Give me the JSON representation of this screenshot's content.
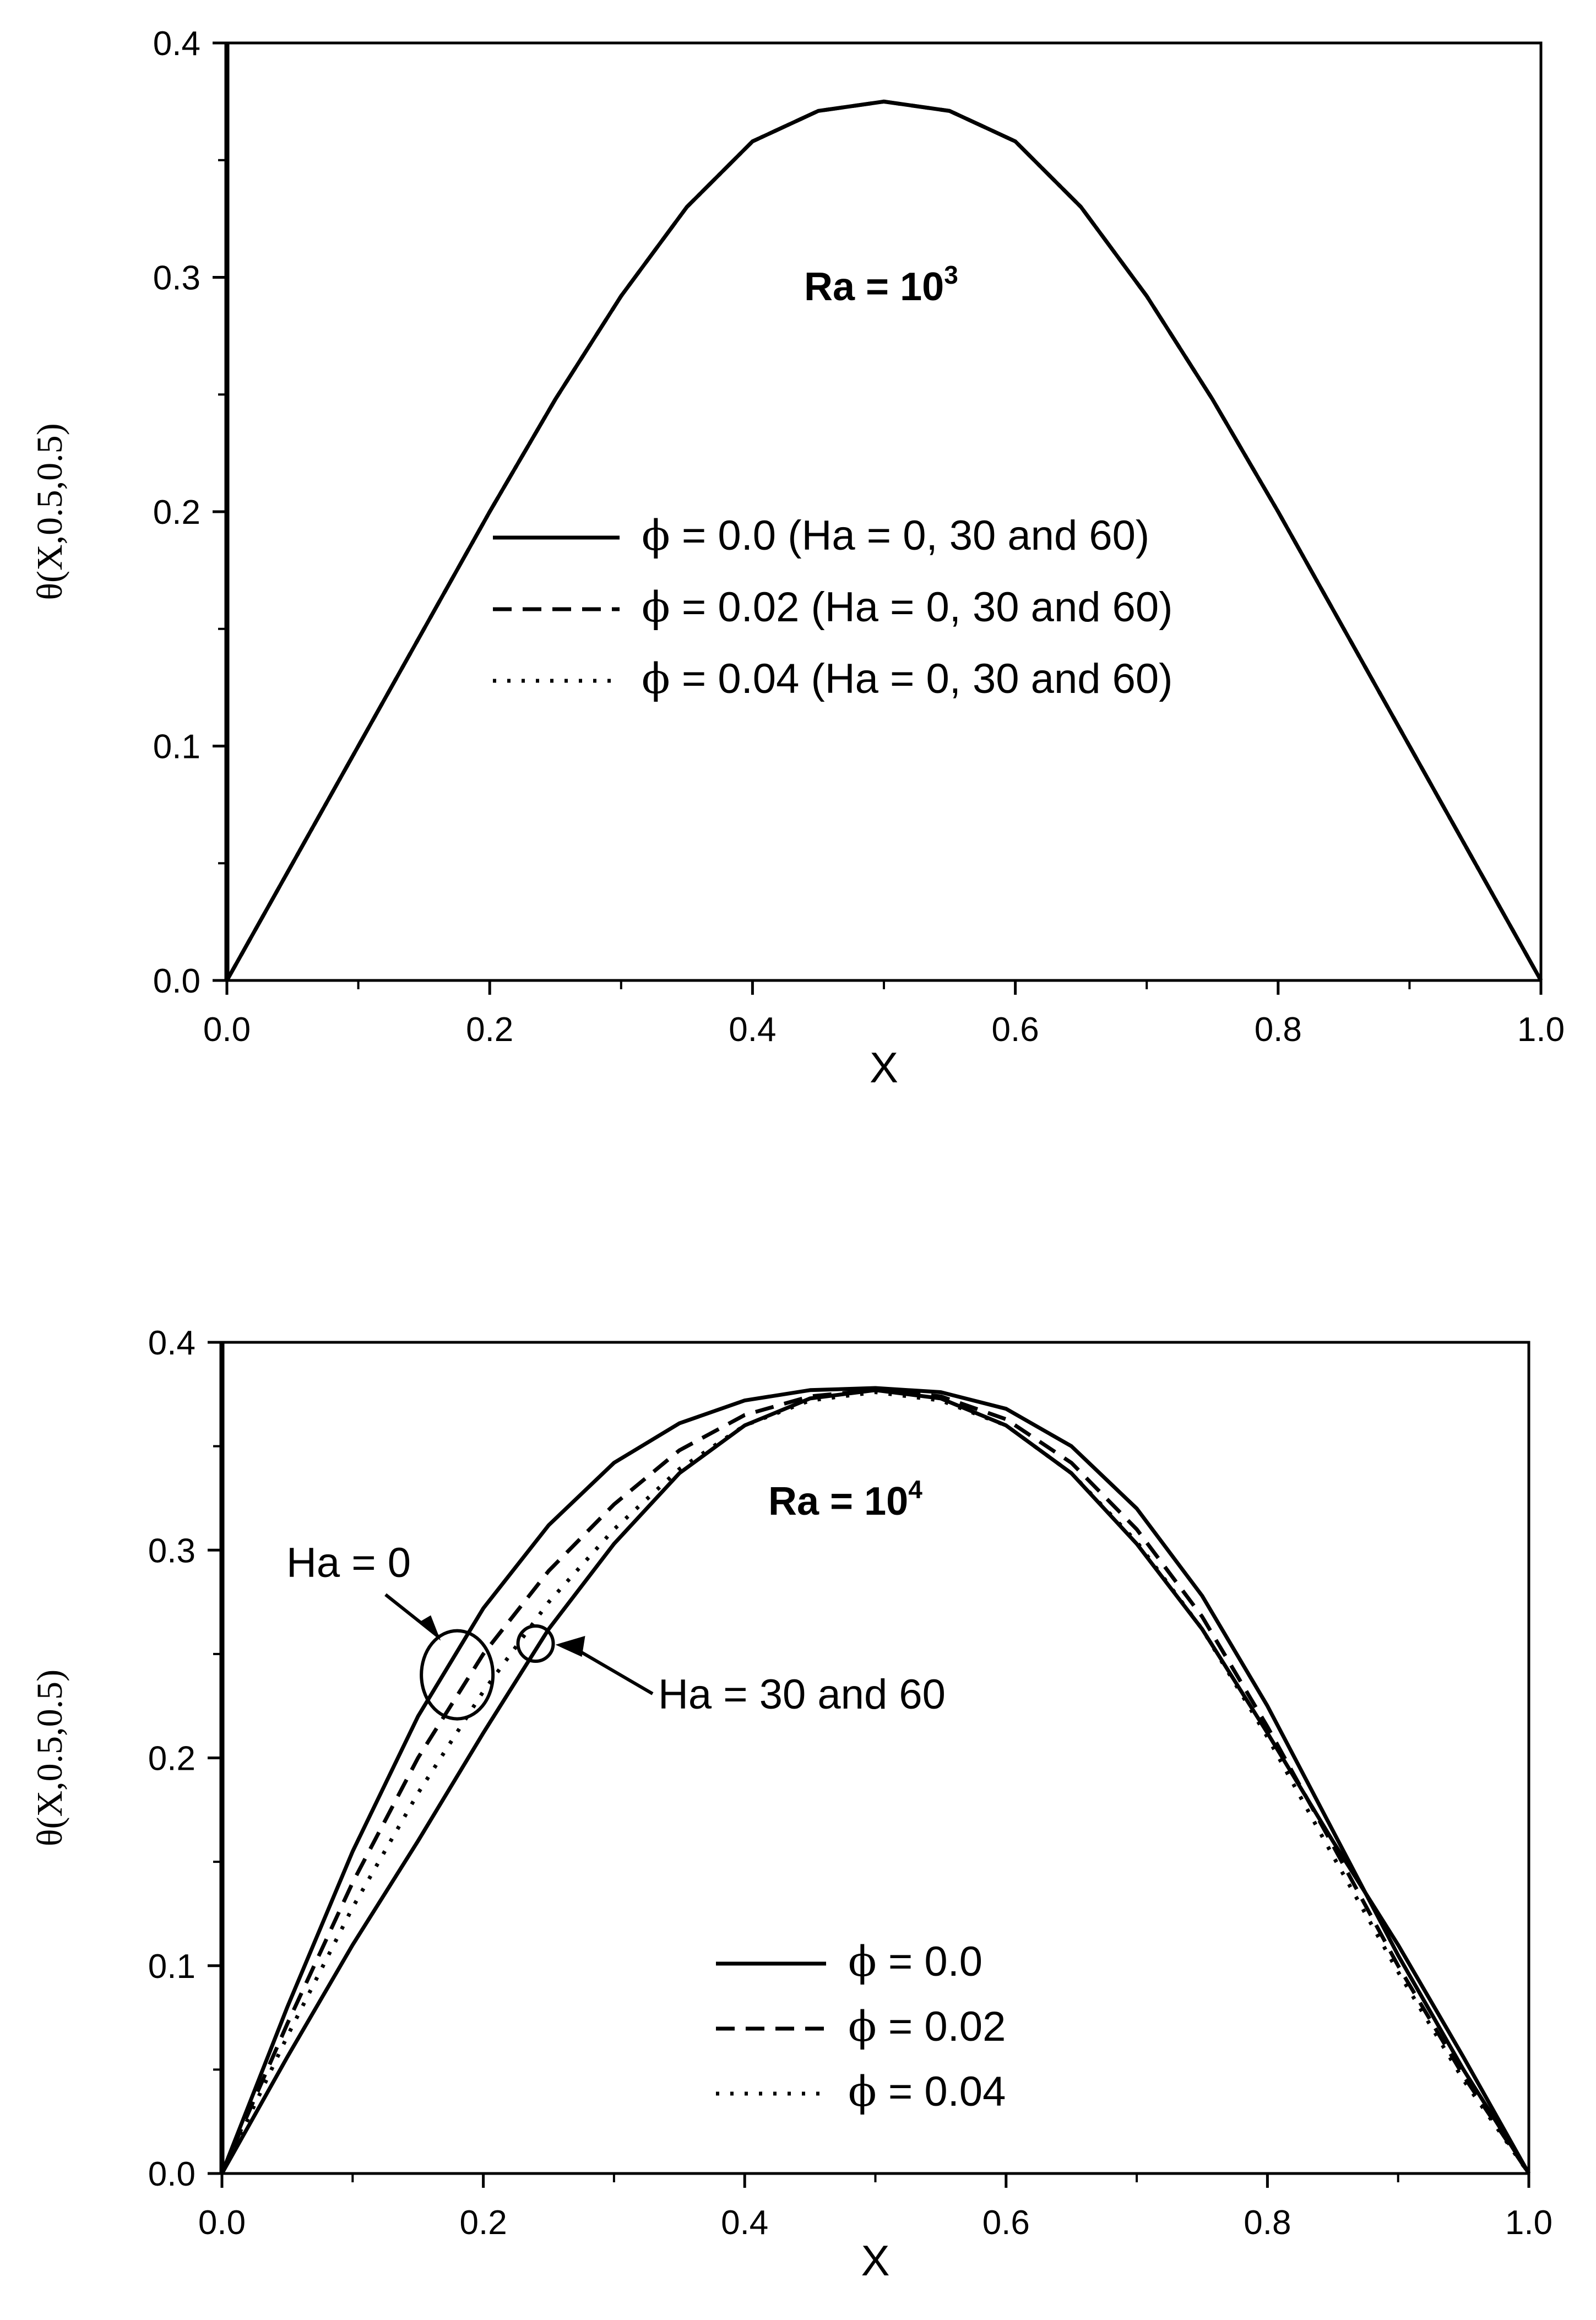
{
  "chart_data": [
    {
      "type": "line",
      "xlabel": "X",
      "ylabel": "θ(X,0.5,0.5)",
      "xlim": [
        0.0,
        1.0
      ],
      "ylim": [
        0.0,
        0.4
      ],
      "x_ticks": [
        "0.0",
        "0.2",
        "0.4",
        "0.6",
        "0.8",
        "1.0"
      ],
      "y_ticks": [
        "0.0",
        "0.1",
        "0.2",
        "0.3",
        "0.4"
      ],
      "annotation": {
        "prefix": "Ra = 10",
        "exponent": "3"
      },
      "legend_location": "center",
      "legend": [
        {
          "symbol": "ϕ",
          "text": " = 0.0 (Ha = 0, 30 and 60)",
          "dash": "solid"
        },
        {
          "symbol": "ϕ",
          "text": " = 0.02 (Ha = 0, 30 and 60)",
          "dash": "dashed"
        },
        {
          "symbol": "ϕ",
          "text": " = 0.04 (Ha = 0, 30 and 60)",
          "dash": "dotted"
        }
      ],
      "series": [
        {
          "name": "ϕ = 0.0 (Ha = 0, 30 and 60)",
          "dash": "solid",
          "x": [
            0.0,
            0.05,
            0.1,
            0.15,
            0.2,
            0.25,
            0.3,
            0.35,
            0.4,
            0.45,
            0.5,
            0.55,
            0.6,
            0.65,
            0.7,
            0.75,
            0.8,
            0.85,
            0.9,
            0.95,
            1.0
          ],
          "y": [
            0.0,
            0.05,
            0.1,
            0.15,
            0.2,
            0.248,
            0.292,
            0.33,
            0.358,
            0.371,
            0.375,
            0.371,
            0.358,
            0.33,
            0.292,
            0.248,
            0.2,
            0.15,
            0.1,
            0.05,
            0.0
          ]
        },
        {
          "name": "ϕ = 0.02 (Ha = 0, 30 and 60)",
          "dash": "dashed",
          "x": [
            0.0,
            0.05,
            0.1,
            0.15,
            0.2,
            0.25,
            0.3,
            0.35,
            0.4,
            0.45,
            0.5,
            0.55,
            0.6,
            0.65,
            0.7,
            0.75,
            0.8,
            0.85,
            0.9,
            0.95,
            1.0
          ],
          "y": [
            0.0,
            0.05,
            0.1,
            0.15,
            0.2,
            0.248,
            0.292,
            0.33,
            0.358,
            0.371,
            0.375,
            0.371,
            0.358,
            0.33,
            0.292,
            0.248,
            0.2,
            0.15,
            0.1,
            0.05,
            0.0
          ]
        },
        {
          "name": "ϕ = 0.04 (Ha = 0, 30 and 60)",
          "dash": "dotted",
          "x": [
            0.0,
            0.05,
            0.1,
            0.15,
            0.2,
            0.25,
            0.3,
            0.35,
            0.4,
            0.45,
            0.5,
            0.55,
            0.6,
            0.65,
            0.7,
            0.75,
            0.8,
            0.85,
            0.9,
            0.95,
            1.0
          ],
          "y": [
            0.0,
            0.05,
            0.1,
            0.15,
            0.2,
            0.248,
            0.292,
            0.33,
            0.358,
            0.371,
            0.375,
            0.371,
            0.358,
            0.33,
            0.292,
            0.248,
            0.2,
            0.15,
            0.1,
            0.05,
            0.0
          ]
        }
      ]
    },
    {
      "type": "line",
      "xlabel": "X",
      "ylabel": "θ(X,0.5,0.5)",
      "xlim": [
        0.0,
        1.0
      ],
      "ylim": [
        0.0,
        0.4
      ],
      "x_ticks": [
        "0.0",
        "0.2",
        "0.4",
        "0.6",
        "0.8",
        "1.0"
      ],
      "y_ticks": [
        "0.0",
        "0.1",
        "0.2",
        "0.3",
        "0.4"
      ],
      "annotation": {
        "prefix": "Ra = 10",
        "exponent": "4"
      },
      "legend_location": "bottom-center",
      "legend": [
        {
          "symbol": "ϕ",
          "text": " = 0.0",
          "dash": "solid"
        },
        {
          "symbol": "ϕ",
          "text": " = 0.02",
          "dash": "dashed"
        },
        {
          "symbol": "ϕ",
          "text": " = 0.04",
          "dash": "dotted"
        }
      ],
      "annotations": [
        {
          "text": "Ha = 0",
          "target_x": 0.18,
          "target_y": 0.24
        },
        {
          "text": "Ha = 30 and 60",
          "target_x": 0.24,
          "target_y": 0.255
        }
      ],
      "series": [
        {
          "name": "ϕ = 0.0, Ha = 0",
          "dash": "solid",
          "x": [
            0.0,
            0.05,
            0.1,
            0.15,
            0.2,
            0.25,
            0.3,
            0.35,
            0.4,
            0.45,
            0.5,
            0.55,
            0.6,
            0.65,
            0.7,
            0.75,
            0.8,
            0.85,
            0.9,
            0.95,
            1.0
          ],
          "y": [
            0.0,
            0.08,
            0.155,
            0.22,
            0.272,
            0.312,
            0.342,
            0.361,
            0.372,
            0.377,
            0.378,
            0.376,
            0.368,
            0.35,
            0.32,
            0.278,
            0.225,
            0.165,
            0.105,
            0.05,
            0.0
          ]
        },
        {
          "name": "ϕ = 0.02, Ha = 0",
          "dash": "dashed",
          "x": [
            0.0,
            0.05,
            0.1,
            0.15,
            0.2,
            0.25,
            0.3,
            0.35,
            0.4,
            0.45,
            0.5,
            0.55,
            0.6,
            0.65,
            0.7,
            0.75,
            0.8,
            0.85,
            0.9,
            0.95,
            1.0
          ],
          "y": [
            0.0,
            0.072,
            0.14,
            0.2,
            0.25,
            0.29,
            0.322,
            0.348,
            0.365,
            0.374,
            0.377,
            0.374,
            0.363,
            0.342,
            0.31,
            0.268,
            0.215,
            0.158,
            0.1,
            0.047,
            0.0
          ]
        },
        {
          "name": "ϕ = 0.04, Ha = 0",
          "dash": "dotted",
          "x": [
            0.0,
            0.05,
            0.1,
            0.15,
            0.2,
            0.25,
            0.3,
            0.35,
            0.4,
            0.45,
            0.5,
            0.55,
            0.6,
            0.65,
            0.7,
            0.75,
            0.8,
            0.85,
            0.9,
            0.95,
            1.0
          ],
          "y": [
            0.0,
            0.066,
            0.128,
            0.183,
            0.232,
            0.275,
            0.31,
            0.339,
            0.36,
            0.372,
            0.376,
            0.372,
            0.36,
            0.337,
            0.304,
            0.262,
            0.21,
            0.153,
            0.097,
            0.045,
            0.0
          ]
        },
        {
          "name": "ϕ = 0.0, 0.02, 0.04, Ha = 30 and 60",
          "dash": "solid",
          "x": [
            0.0,
            0.05,
            0.1,
            0.15,
            0.2,
            0.25,
            0.3,
            0.35,
            0.4,
            0.45,
            0.5,
            0.55,
            0.6,
            0.65,
            0.7,
            0.75,
            0.8,
            0.85,
            0.9,
            0.95,
            1.0
          ],
          "y": [
            0.0,
            0.056,
            0.11,
            0.16,
            0.212,
            0.262,
            0.303,
            0.337,
            0.36,
            0.373,
            0.377,
            0.373,
            0.36,
            0.337,
            0.303,
            0.262,
            0.212,
            0.16,
            0.11,
            0.056,
            0.0
          ]
        }
      ]
    }
  ]
}
